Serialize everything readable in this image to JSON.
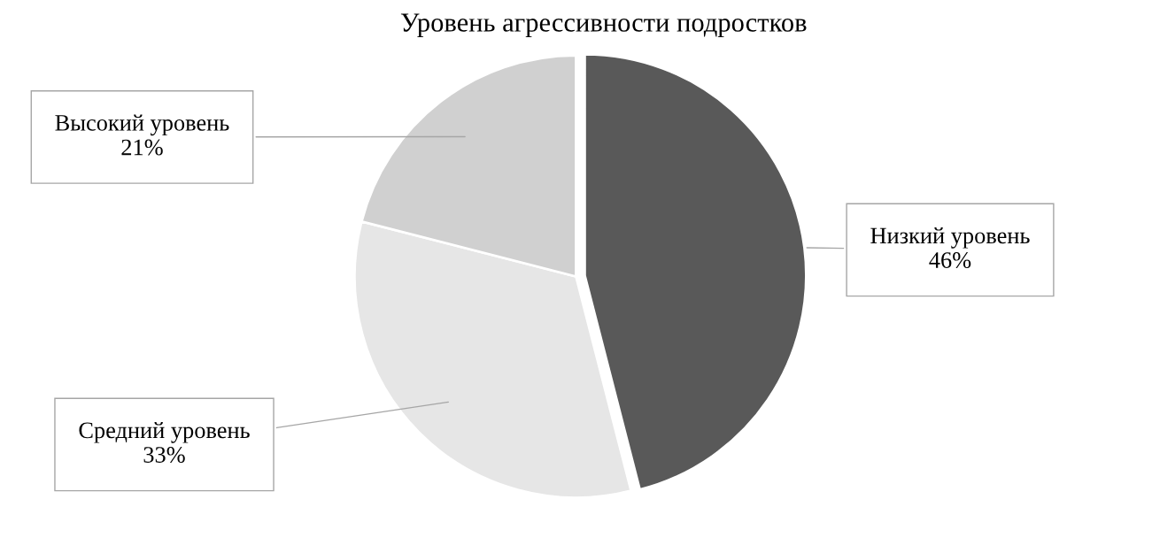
{
  "chart_data": {
    "type": "pie",
    "title": "Уровень агрессивности подростков",
    "categories": [
      "Низкий уровень",
      "Средний уровень",
      "Высокий уровень"
    ],
    "values": [
      46,
      33,
      21
    ],
    "colors": [
      "#595959",
      "#e6e6e6",
      "#d0d0d0"
    ],
    "value_labels": [
      "46%",
      "33%",
      "21%"
    ],
    "legend": false
  }
}
